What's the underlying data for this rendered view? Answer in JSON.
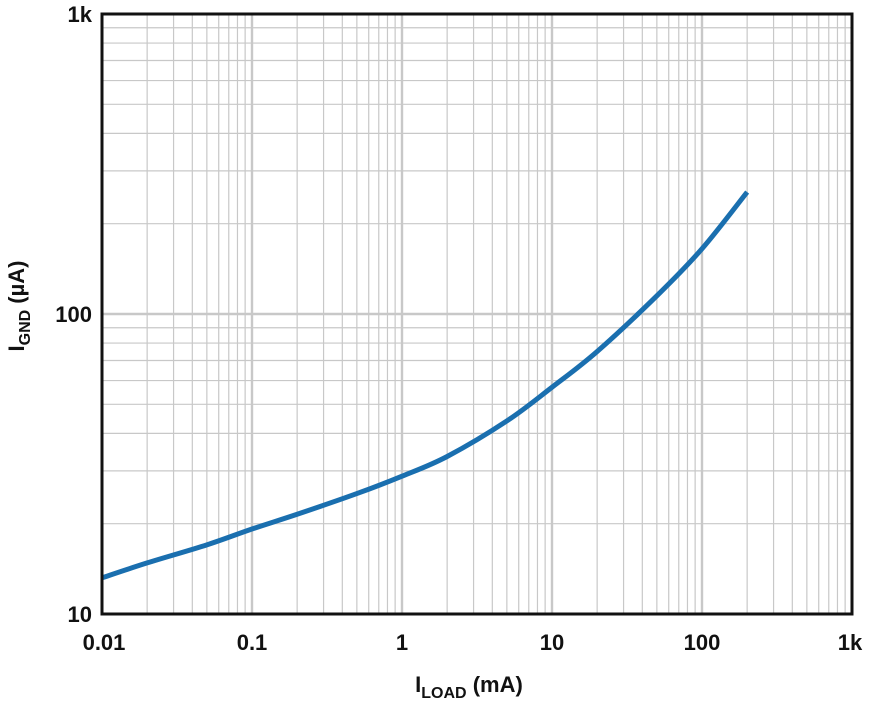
{
  "chart_data": {
    "type": "line",
    "title": "",
    "x_scale": "log",
    "y_scale": "log",
    "xlim": [
      0.01,
      1000
    ],
    "ylim": [
      10,
      1000
    ],
    "grid": true,
    "x_ticks": [
      {
        "value": 0.01,
        "label": "0.01"
      },
      {
        "value": 0.1,
        "label": "0.1"
      },
      {
        "value": 1,
        "label": "1"
      },
      {
        "value": 10,
        "label": "10"
      },
      {
        "value": 100,
        "label": "100"
      },
      {
        "value": 1000,
        "label": "1k"
      }
    ],
    "y_ticks": [
      {
        "value": 10,
        "label": "10"
      },
      {
        "value": 100,
        "label": "100"
      },
      {
        "value": 1000,
        "label": "1k"
      }
    ],
    "xlabel": {
      "main": "I",
      "sub": "LOAD",
      "unit": " (mA)"
    },
    "ylabel": {
      "main": "I",
      "sub": "GND",
      "unit": " (µA)"
    },
    "series": [
      {
        "color": "#1a6faf",
        "points": [
          {
            "x": 0.01,
            "y": 13.2
          },
          {
            "x": 0.02,
            "y": 14.8
          },
          {
            "x": 0.05,
            "y": 17.0
          },
          {
            "x": 0.1,
            "y": 19.2
          },
          {
            "x": 0.2,
            "y": 21.5
          },
          {
            "x": 0.5,
            "y": 25.2
          },
          {
            "x": 1,
            "y": 28.8
          },
          {
            "x": 2,
            "y": 33.5
          },
          {
            "x": 5,
            "y": 44.0
          },
          {
            "x": 10,
            "y": 57.0
          },
          {
            "x": 20,
            "y": 75.0
          },
          {
            "x": 50,
            "y": 115.0
          },
          {
            "x": 100,
            "y": 165.0
          },
          {
            "x": 200,
            "y": 255.0
          }
        ]
      }
    ]
  }
}
